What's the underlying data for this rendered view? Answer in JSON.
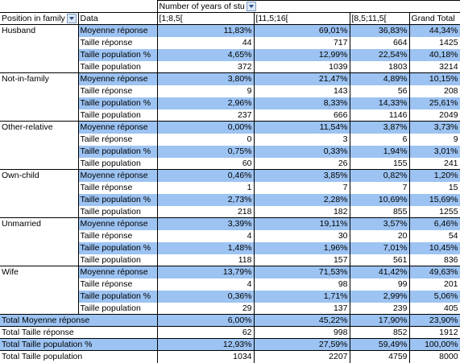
{
  "header": {
    "column_field": "Number of years of stu",
    "row_field": "Position in family",
    "data_label": "Data",
    "columns": [
      "[1;8,5[",
      "[11,5;16[",
      "[8,5;11,5[",
      "Grand Total"
    ]
  },
  "groups": [
    {
      "name": "Husband",
      "rows": [
        {
          "label": "Moyenne réponse",
          "values": [
            "11,83%",
            "69,01%",
            "36,83%",
            "44,34%"
          ]
        },
        {
          "label": "Taille réponse",
          "values": [
            "44",
            "717",
            "664",
            "1425"
          ]
        },
        {
          "label": "Taille population %",
          "values": [
            "4,65%",
            "12,99%",
            "22,54%",
            "40,18%"
          ]
        },
        {
          "label": "Taille population",
          "values": [
            "372",
            "1039",
            "1803",
            "3214"
          ]
        }
      ]
    },
    {
      "name": "Not-in-family",
      "rows": [
        {
          "label": "Moyenne réponse",
          "values": [
            "3,80%",
            "21,47%",
            "4,89%",
            "10,15%"
          ]
        },
        {
          "label": "Taille réponse",
          "values": [
            "9",
            "143",
            "56",
            "208"
          ]
        },
        {
          "label": "Taille population %",
          "values": [
            "2,96%",
            "8,33%",
            "14,33%",
            "25,61%"
          ]
        },
        {
          "label": "Taille population",
          "values": [
            "237",
            "666",
            "1146",
            "2049"
          ]
        }
      ]
    },
    {
      "name": "Other-relative",
      "rows": [
        {
          "label": "Moyenne réponse",
          "values": [
            "0,00%",
            "11,54%",
            "3,87%",
            "3,73%"
          ]
        },
        {
          "label": "Taille réponse",
          "values": [
            "0",
            "3",
            "6",
            "9"
          ]
        },
        {
          "label": "Taille population %",
          "values": [
            "0,75%",
            "0,33%",
            "1,94%",
            "3,01%"
          ]
        },
        {
          "label": "Taille population",
          "values": [
            "60",
            "26",
            "155",
            "241"
          ]
        }
      ]
    },
    {
      "name": "Own-child",
      "rows": [
        {
          "label": "Moyenne réponse",
          "values": [
            "0,46%",
            "3,85%",
            "0,82%",
            "1,20%"
          ]
        },
        {
          "label": "Taille réponse",
          "values": [
            "1",
            "7",
            "7",
            "15"
          ]
        },
        {
          "label": "Taille population %",
          "values": [
            "2,73%",
            "2,28%",
            "10,69%",
            "15,69%"
          ]
        },
        {
          "label": "Taille population",
          "values": [
            "218",
            "182",
            "855",
            "1255"
          ]
        }
      ]
    },
    {
      "name": "Unmarried",
      "rows": [
        {
          "label": "Moyenne réponse",
          "values": [
            "3,39%",
            "19,11%",
            "3,57%",
            "6,46%"
          ]
        },
        {
          "label": "Taille réponse",
          "values": [
            "4",
            "30",
            "20",
            "54"
          ]
        },
        {
          "label": "Taille population %",
          "values": [
            "1,48%",
            "1,96%",
            "7,01%",
            "10,45%"
          ]
        },
        {
          "label": "Taille population",
          "values": [
            "118",
            "157",
            "561",
            "836"
          ]
        }
      ]
    },
    {
      "name": "Wife",
      "rows": [
        {
          "label": "Moyenne réponse",
          "values": [
            "13,79%",
            "71,53%",
            "41,42%",
            "49,63%"
          ]
        },
        {
          "label": "Taille réponse",
          "values": [
            "4",
            "98",
            "99",
            "201"
          ]
        },
        {
          "label": "Taille population %",
          "values": [
            "0,36%",
            "1,71%",
            "2,99%",
            "5,06%"
          ]
        },
        {
          "label": "Taille population",
          "values": [
            "29",
            "137",
            "239",
            "405"
          ]
        }
      ]
    }
  ],
  "totals": [
    {
      "label": "Total Moyenne réponse",
      "values": [
        "6,00%",
        "45,22%",
        "17,90%",
        "23,90%"
      ]
    },
    {
      "label": "Total Taille réponse",
      "values": [
        "62",
        "998",
        "852",
        "1912"
      ]
    },
    {
      "label": "Total Taille population %",
      "values": [
        "12,93%",
        "27,59%",
        "59,49%",
        "100,00%"
      ]
    },
    {
      "label": "Total Taille population",
      "values": [
        "1034",
        "2207",
        "4759",
        "8000"
      ]
    }
  ],
  "colors": {
    "highlight": "#9cc3f2",
    "grid": "#000000"
  },
  "icons": {
    "filter_button": "dropdown-arrow-icon"
  }
}
